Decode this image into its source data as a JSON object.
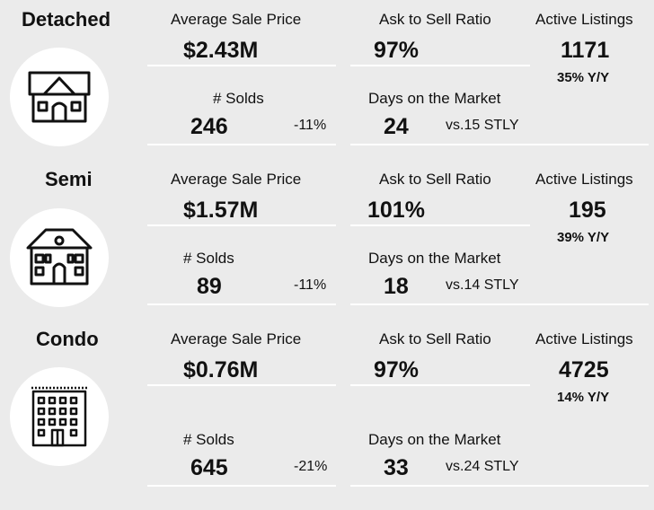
{
  "labels": {
    "avg_sale_price": "Average Sale Price",
    "ask_to_sell": "Ask to Sell Ratio",
    "active_listings": "Active Listings",
    "solds": "# Solds",
    "dom": "Days on the Market"
  },
  "sections": [
    {
      "title": "Detached",
      "icon": "detached-house-icon",
      "avg_price": "$2.43M",
      "ask_ratio": "97%",
      "active": "1171",
      "active_yoy": "35% Y/Y",
      "solds": "246",
      "solds_change": "-11%",
      "dom": "24",
      "dom_stly": "vs.15 STLY"
    },
    {
      "title": "Semi",
      "icon": "semi-house-icon",
      "avg_price": "$1.57M",
      "ask_ratio": "101%",
      "active": "195",
      "active_yoy": "39% Y/Y",
      "solds": "89",
      "solds_change": "-11%",
      "dom": "18",
      "dom_stly": "vs.14 STLY"
    },
    {
      "title": "Condo",
      "icon": "condo-building-icon",
      "avg_price": "$0.76M",
      "ask_ratio": "97%",
      "active": "4725",
      "active_yoy": "14% Y/Y",
      "solds": "645",
      "solds_change": "-21%",
      "dom": "33",
      "dom_stly": "vs.24 STLY"
    }
  ]
}
